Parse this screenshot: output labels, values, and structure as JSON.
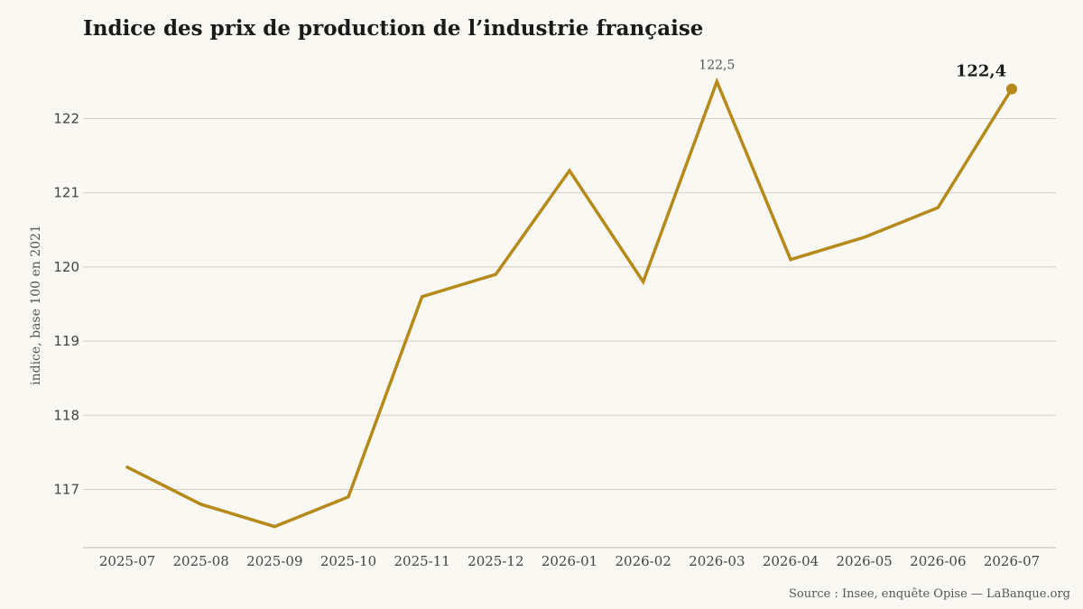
{
  "title": "Indice des prix de production de l’industrie française",
  "source": "Source : Insee, enquête Opise — LaBanque.org",
  "colors": {
    "line": "#b5891a",
    "grid": "#d0cec6",
    "background": "#faf8f2"
  },
  "chart_data": {
    "type": "line",
    "title": "Indice des prix de production de l’industrie française",
    "xlabel": "",
    "ylabel": "indice, base 100 en 2021",
    "categories": [
      "2025-07",
      "2025-08",
      "2025-09",
      "2025-10",
      "2025-11",
      "2025-12",
      "2026-01",
      "2026-02",
      "2026-03",
      "2026-04",
      "2026-05",
      "2026-06",
      "2026-07"
    ],
    "series": [
      {
        "values": [
          117.3,
          116.8,
          116.5,
          116.9,
          119.6,
          119.9,
          121.3,
          119.8,
          122.5,
          120.1,
          120.4,
          120.8,
          122.4
        ]
      }
    ],
    "yticks": [
      117,
      118,
      119,
      120,
      121,
      122
    ],
    "ytick_labels": [
      "117",
      "118",
      "119",
      "120",
      "121",
      "122"
    ],
    "ylim": [
      116.2,
      122.9
    ],
    "grid": "horizontal",
    "legend": "none",
    "annotations": [
      {
        "category": "2026-03",
        "value": 122.5,
        "text": "122,5",
        "style": "peak"
      },
      {
        "category": "2026-07",
        "value": 122.4,
        "text": "122,4",
        "style": "last"
      }
    ]
  }
}
